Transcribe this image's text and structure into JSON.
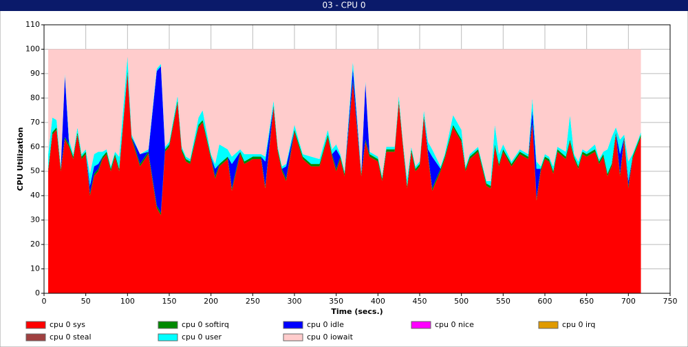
{
  "chart_data": {
    "type": "stacked-area",
    "title": "03 - CPU 0",
    "xlabel": "Time (secs.)",
    "ylabel": "CPU Utilization",
    "x": [
      5,
      10,
      15,
      20,
      25,
      30,
      35,
      40,
      45,
      50,
      55,
      60,
      65,
      70,
      75,
      80,
      85,
      90,
      100,
      105,
      115,
      125,
      135,
      140,
      145,
      150,
      160,
      165,
      170,
      175,
      185,
      190,
      200,
      205,
      210,
      220,
      225,
      235,
      240,
      250,
      260,
      265,
      275,
      280,
      285,
      290,
      300,
      310,
      320,
      330,
      340,
      345,
      350,
      355,
      360,
      370,
      380,
      385,
      390,
      400,
      405,
      410,
      420,
      425,
      430,
      435,
      440,
      445,
      450,
      455,
      460,
      465,
      475,
      480,
      490,
      500,
      505,
      510,
      520,
      530,
      535,
      540,
      545,
      550,
      560,
      570,
      580,
      585,
      590,
      595,
      600,
      605,
      610,
      615,
      625,
      630,
      635,
      640,
      645,
      650,
      660,
      665,
      670,
      675,
      680,
      685,
      690,
      695,
      700,
      705,
      715
    ],
    "series": [
      {
        "name": "cpu 0 sys",
        "color": "#ff0000",
        "values": [
          50,
          65,
          67,
          50,
          63,
          60,
          55,
          65,
          55,
          57,
          40,
          48,
          50,
          55,
          57,
          50,
          56,
          50,
          90,
          63,
          52,
          57,
          35,
          32,
          58,
          60,
          78,
          58,
          54,
          53,
          68,
          70,
          55,
          47,
          52,
          55,
          42,
          57,
          53,
          55,
          55,
          43,
          76,
          58,
          50,
          46,
          66,
          55,
          52,
          52,
          64,
          56,
          50,
          55,
          48,
          86,
          48,
          62,
          56,
          54,
          46,
          58,
          58,
          78,
          60,
          43,
          58,
          50,
          52,
          72,
          56,
          42,
          50,
          55,
          68,
          62,
          50,
          55,
          58,
          44,
          43,
          60,
          52,
          58,
          52,
          57,
          55,
          69,
          38,
          50,
          55,
          54,
          49,
          58,
          55,
          62,
          55,
          51,
          57,
          56,
          58,
          53,
          56,
          48,
          52,
          65,
          48,
          63,
          43,
          55,
          64
        ]
      },
      {
        "name": "cpu 0 softirq",
        "color": "#008800",
        "values": [
          1,
          1,
          1,
          1,
          1,
          1,
          1,
          1,
          1,
          1,
          1,
          1,
          1,
          1,
          1,
          1,
          1,
          1,
          1,
          1,
          1,
          1,
          1,
          1,
          1,
          1,
          1,
          1,
          1,
          1,
          1,
          1,
          1,
          1,
          1,
          1,
          1,
          1,
          1,
          1,
          1,
          1,
          1,
          1,
          1,
          1,
          1,
          1,
          1,
          1,
          1,
          1,
          1,
          1,
          1,
          1,
          1,
          1,
          1,
          1,
          1,
          1,
          1,
          1,
          1,
          1,
          1,
          1,
          1,
          1,
          1,
          1,
          1,
          1,
          1,
          1,
          1,
          1,
          1,
          1,
          1,
          1,
          1,
          1,
          1,
          1,
          1,
          1,
          1,
          1,
          1,
          1,
          1,
          1,
          1,
          1,
          1,
          1,
          1,
          1,
          1,
          1,
          1,
          1,
          1,
          1,
          1,
          1,
          1,
          1,
          1
        ]
      },
      {
        "name": "cpu 0 idle",
        "color": "#0000ff",
        "values": [
          0,
          0,
          0,
          0,
          25,
          0,
          0,
          0,
          0,
          0,
          3,
          3,
          2,
          0,
          0,
          0,
          0,
          0,
          0,
          0,
          4,
          0,
          55,
          60,
          0,
          0,
          0,
          0,
          0,
          0,
          0,
          0,
          0,
          3,
          0,
          0,
          10,
          0,
          0,
          0,
          0,
          10,
          0,
          0,
          0,
          5,
          0,
          0,
          0,
          0,
          0,
          0,
          8,
          0,
          0,
          5,
          0,
          23,
          0,
          0,
          0,
          0,
          0,
          0,
          0,
          0,
          0,
          0,
          0,
          0,
          2,
          13,
          0,
          0,
          0,
          0,
          0,
          0,
          0,
          0,
          0,
          0,
          0,
          0,
          0,
          0,
          0,
          5,
          12,
          0,
          0,
          0,
          0,
          0,
          0,
          0,
          0,
          0,
          0,
          0,
          0,
          0,
          0,
          0,
          0,
          0,
          8,
          0,
          2,
          0,
          0
        ]
      },
      {
        "name": "cpu 0 nice",
        "color": "#ff00ff",
        "values": [
          0,
          0,
          0,
          0,
          0,
          0,
          0,
          0,
          0,
          0,
          0,
          0,
          0,
          0,
          0,
          0,
          0,
          0,
          0,
          0,
          0,
          0,
          0,
          0,
          0,
          0,
          0,
          0,
          0,
          0,
          0,
          0,
          0,
          0,
          0,
          0,
          0,
          0,
          0,
          0,
          0,
          0,
          0,
          0,
          0,
          0,
          0,
          0,
          0,
          0,
          0,
          0,
          0,
          0,
          0,
          0,
          0,
          0,
          0,
          0,
          0,
          0,
          0,
          0,
          0,
          0,
          0,
          0,
          0,
          0,
          0,
          0,
          0,
          0,
          0,
          0,
          0,
          0,
          0,
          0,
          0,
          0,
          0,
          0,
          0,
          0,
          0,
          0,
          0,
          0,
          0,
          0,
          0,
          0,
          0,
          0,
          0,
          0,
          0,
          0,
          0,
          0,
          0,
          0,
          0,
          0,
          0,
          0,
          0,
          0,
          0
        ]
      },
      {
        "name": "cpu 0 irq",
        "color": "#e09a00",
        "values": [
          0,
          0,
          0,
          0,
          0,
          0,
          0,
          0,
          0,
          0,
          0,
          0,
          0,
          0,
          0,
          0,
          0,
          0,
          0,
          0,
          0,
          0,
          0,
          0,
          0,
          0,
          0,
          0,
          0,
          0,
          0,
          0,
          0,
          0,
          0,
          0,
          0,
          0,
          0,
          0,
          0,
          0,
          0,
          0,
          0,
          0,
          0,
          0,
          0,
          0,
          0,
          0,
          0,
          0,
          0,
          0,
          0,
          0,
          0,
          0,
          0,
          0,
          0,
          0,
          0,
          0,
          0,
          0,
          0,
          0,
          0,
          0,
          0,
          0,
          0,
          0,
          0,
          0,
          0,
          0,
          0,
          0,
          0,
          0,
          0,
          0,
          0,
          0,
          0,
          0,
          0,
          0,
          0,
          0,
          0,
          0,
          0,
          0,
          0,
          0,
          0,
          0,
          0,
          0,
          0,
          0,
          0,
          0,
          0,
          0,
          0
        ]
      },
      {
        "name": "cpu 0 steal",
        "color": "#a04040",
        "values": [
          0,
          0,
          0,
          0,
          0,
          0,
          0,
          0,
          0,
          0,
          0,
          0,
          0,
          0,
          0,
          0,
          0,
          0,
          0,
          0,
          0,
          0,
          0,
          0,
          0,
          0,
          0,
          0,
          0,
          0,
          0,
          0,
          0,
          0,
          0,
          0,
          0,
          0,
          0,
          0,
          0,
          0,
          0,
          0,
          0,
          0,
          0,
          0,
          0,
          0,
          0,
          0,
          0,
          0,
          0,
          0,
          0,
          0,
          0,
          0,
          0,
          0,
          0,
          0,
          0,
          0,
          0,
          0,
          0,
          0,
          0,
          0,
          0,
          0,
          0,
          0,
          0,
          0,
          0,
          0,
          0,
          0,
          0,
          0,
          0,
          0,
          0,
          0,
          0,
          0,
          0,
          0,
          0,
          0,
          0,
          0,
          0,
          0,
          0,
          0,
          0,
          0,
          0,
          0,
          0,
          0,
          0,
          0,
          0,
          0,
          0
        ]
      },
      {
        "name": "cpu 0 user",
        "color": "#00ffff",
        "values": [
          6,
          6,
          3,
          1,
          1,
          2,
          1,
          2,
          1,
          1,
          5,
          5,
          5,
          2,
          1,
          1,
          1,
          5,
          6,
          1,
          0,
          1,
          1,
          1,
          1,
          1,
          2,
          1,
          1,
          1,
          3,
          4,
          1,
          2,
          8,
          3,
          3,
          1,
          3,
          1,
          1,
          2,
          2,
          1,
          1,
          1,
          2,
          1,
          3,
          2,
          2,
          2,
          2,
          1,
          1,
          3,
          1,
          1,
          1,
          1,
          1,
          1,
          1,
          2,
          1,
          3,
          1,
          1,
          1,
          2,
          3,
          3,
          1,
          1,
          4,
          4,
          1,
          1,
          1,
          1,
          2,
          8,
          4,
          2,
          1,
          1,
          1,
          5,
          3,
          1,
          1,
          1,
          2,
          1,
          2,
          10,
          1,
          2,
          1,
          1,
          2,
          1,
          1,
          10,
          11,
          2,
          6,
          1,
          8,
          1,
          1
        ]
      },
      {
        "name": "cpu 0 iowait",
        "color": "#ffcccc",
        "values": [
          43,
          28,
          29,
          48,
          10,
          37,
          43,
          32,
          43,
          41,
          51,
          43,
          42,
          42,
          41,
          48,
          42,
          44,
          3,
          35,
          43,
          41,
          8,
          6,
          40,
          38,
          19,
          40,
          44,
          45,
          28,
          25,
          43,
          47,
          39,
          41,
          44,
          41,
          43,
          43,
          43,
          44,
          21,
          40,
          48,
          47,
          31,
          43,
          44,
          45,
          33,
          41,
          39,
          43,
          50,
          5,
          50,
          13,
          42,
          44,
          52,
          40,
          40,
          19,
          38,
          53,
          40,
          48,
          46,
          25,
          38,
          41,
          48,
          43,
          27,
          33,
          48,
          43,
          40,
          54,
          54,
          31,
          43,
          39,
          46,
          41,
          43,
          20,
          46,
          48,
          43,
          44,
          48,
          40,
          42,
          27,
          43,
          46,
          41,
          42,
          39,
          45,
          42,
          41,
          36,
          32,
          37,
          35,
          46,
          43,
          34
        ]
      }
    ],
    "xlim": [
      0,
      750
    ],
    "xticks": [
      0,
      50,
      100,
      150,
      200,
      250,
      300,
      350,
      400,
      450,
      500,
      550,
      600,
      650,
      700,
      750
    ],
    "ylim": [
      0,
      110
    ],
    "yticks": [
      0,
      10,
      20,
      30,
      40,
      50,
      60,
      70,
      80,
      90,
      100,
      110
    ],
    "grid": true
  }
}
